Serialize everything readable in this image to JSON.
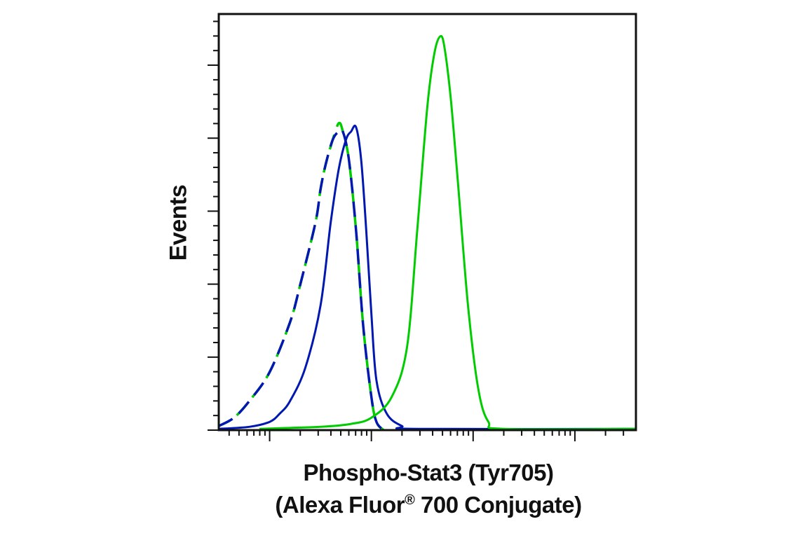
{
  "chart_data": {
    "type": "line",
    "xlabel_line1": "Phospho-Stat3 (Tyr705)",
    "xlabel_line2_pre": "(Alexa Fluor",
    "xlabel_line2_reg": "®",
    "xlabel_line2_post": " 700 Conjugate)",
    "ylabel": "Events",
    "x_scale": "log",
    "xlim": [
      -0.5,
      3.6
    ],
    "ylim": [
      0,
      100
    ],
    "x_major_ticks": [
      0,
      1,
      2,
      3
    ],
    "grid": false,
    "legend": "none",
    "series": [
      {
        "color": "#00cc00",
        "dash": true,
        "x": [
          -0.5,
          -0.35,
          -0.2,
          0,
          0.2,
          0.3,
          0.45,
          0.5,
          0.55,
          0.62,
          0.68,
          0.72,
          0.78,
          0.85,
          0.92,
          1.0,
          1.05,
          1.12
        ],
        "y": [
          1,
          3,
          7,
          14,
          26,
          35,
          50,
          58,
          64,
          70,
          74,
          72,
          65,
          48,
          25,
          8,
          2,
          0
        ]
      },
      {
        "color": "#0018b0",
        "dash": true,
        "x": [
          -0.5,
          -0.35,
          -0.2,
          0,
          0.2,
          0.3,
          0.45,
          0.5,
          0.55,
          0.62,
          0.68,
          0.72,
          0.78,
          0.85,
          0.92,
          1.0,
          1.05,
          1.12
        ],
        "y": [
          1,
          3,
          7,
          14,
          26,
          35,
          50,
          58,
          64,
          70,
          72,
          72,
          65,
          48,
          25,
          8,
          2,
          0
        ]
      },
      {
        "color": "#0018b0",
        "dash": false,
        "x": [
          -0.5,
          -0.2,
          0,
          0.1,
          0.2,
          0.35,
          0.5,
          0.6,
          0.68,
          0.75,
          0.8,
          0.85,
          0.9,
          0.95,
          1.0,
          1.05,
          1.15,
          1.3,
          1.45,
          3.6
        ],
        "y": [
          0.3,
          0.8,
          2,
          4,
          7,
          15,
          30,
          50,
          63,
          70,
          72,
          73,
          65,
          48,
          28,
          12,
          4,
          1,
          0.3,
          0.3
        ]
      },
      {
        "color": "#00cc00",
        "dash": false,
        "x": [
          -0.1,
          0.5,
          0.8,
          1.0,
          1.2,
          1.35,
          1.45,
          1.55,
          1.62,
          1.68,
          1.72,
          1.78,
          1.85,
          1.95,
          2.05,
          2.15,
          2.3,
          3.6
        ],
        "y": [
          0.3,
          0.8,
          1.5,
          3,
          8,
          20,
          48,
          78,
          91,
          95,
          92,
          80,
          60,
          30,
          10,
          2,
          0.3,
          0.3
        ]
      }
    ]
  }
}
